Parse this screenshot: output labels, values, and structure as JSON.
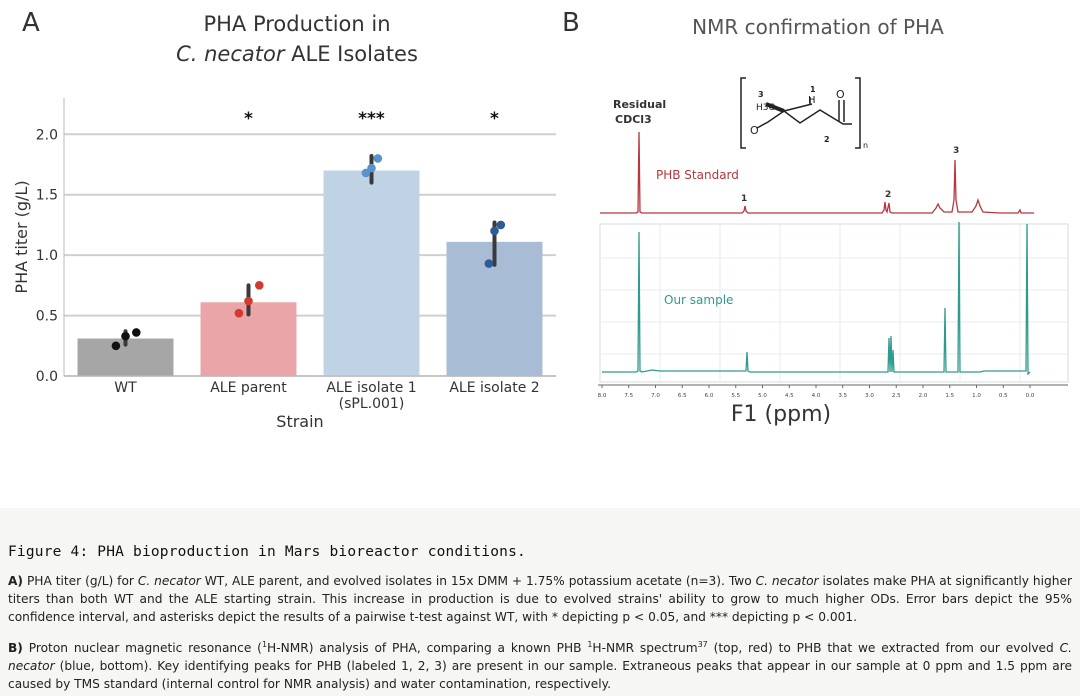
{
  "panel_a": {
    "letter": "A",
    "title_line1": "PHA Production in",
    "title_line2_italic": "C. necator",
    "title_line2_rest": " ALE Isolates"
  },
  "panel_b": {
    "letter": "B",
    "title": "NMR confirmation of PHA",
    "label_residual": "Residual",
    "label_cdcl3": "CDCl3",
    "label_standard": "PHB Standard",
    "label_sample": "Our sample",
    "peak_labels": [
      "1",
      "2",
      "3"
    ],
    "xlabel": "F1 (ppm)",
    "ticks": [
      "8.0",
      "7.5",
      "7.0",
      "6.5",
      "6.0",
      "5.5",
      "5.0",
      "4.5",
      "4.0",
      "3.5",
      "3.0",
      "2.5",
      "2.0",
      "1.5",
      "1.0",
      "0.5",
      "0.0"
    ],
    "structure_labels": [
      "3",
      "1",
      "H",
      "H3C",
      "O",
      "2",
      "O",
      "n"
    ],
    "colors": {
      "standard": "#b5373f",
      "sample": "#2f9a8e"
    }
  },
  "chart_data": {
    "type": "bar",
    "title": "PHA Production in C. necator ALE Isolates",
    "xlabel": "Strain",
    "ylabel": "PHA titer (g/L)",
    "ylim": [
      0,
      2.3
    ],
    "yticks": [
      "0.0",
      "0.5",
      "1.0",
      "1.5",
      "2.0"
    ],
    "grid": true,
    "categories": [
      "WT",
      "ALE parent",
      "ALE isolate 1",
      "ALE isolate 2"
    ],
    "category_sublabels": [
      "",
      "",
      "(sPL.001)",
      ""
    ],
    "values": [
      0.31,
      0.61,
      1.7,
      1.11
    ],
    "ci_low": [
      0.26,
      0.51,
      1.6,
      0.92
    ],
    "ci_high": [
      0.37,
      0.75,
      1.82,
      1.27
    ],
    "points": [
      [
        0.25,
        0.33,
        0.36
      ],
      [
        0.52,
        0.62,
        0.75
      ],
      [
        1.68,
        1.72,
        1.8
      ],
      [
        0.93,
        1.2,
        1.25
      ]
    ],
    "significance": [
      "",
      "*",
      "***",
      "*"
    ],
    "bar_colors": [
      "#a6a6a6",
      "#eaa5a8",
      "#bfd3e4",
      "#a9bcd6"
    ],
    "point_colors": [
      "#111111",
      "#d03a2f",
      "#5b92c9",
      "#2c5b95"
    ]
  },
  "caption": {
    "title": "Figure 4: PHA bioproduction in Mars bioreactor conditions.",
    "a_label": "A)",
    "a_text1": " PHA titer (g/L) for ",
    "a_italic1": "C. necator",
    "a_text2": " WT, ALE parent, and evolved isolates in 15x DMM + 1.75% potassium acetate (n=3). Two ",
    "a_italic2": "C. necator",
    "a_text3": " isolates make PHA at significantly higher titers than both WT and the ALE starting strain. This increase in production is due to evolved strains' ability to grow to much higher ODs. Error bars depict the 95% confidence interval, and asterisks depict the results of a pairwise t-test against WT, with * depicting p < 0.05, and *** depicting p < 0.001.",
    "b_label": "B)",
    "b_text1": " Proton nuclear magnetic resonance (",
    "b_sup1": "1",
    "b_text2": "H-NMR) analysis of PHA, comparing a known PHB ",
    "b_sup2": "1",
    "b_text3": "H-NMR spectrum",
    "b_sup3": "37",
    "b_text4": " (top, red) to PHB that we extracted from our evolved ",
    "b_italic1": "C. necator",
    "b_text5": " (blue, bottom). Key identifying peaks for PHB (labeled 1, 2, 3) are present in our sample. Extraneous peaks that appear in our sample at 0 ppm and 1.5 ppm are caused by TMS standard (internal control for NMR analysis) and water contamination, respectively."
  }
}
